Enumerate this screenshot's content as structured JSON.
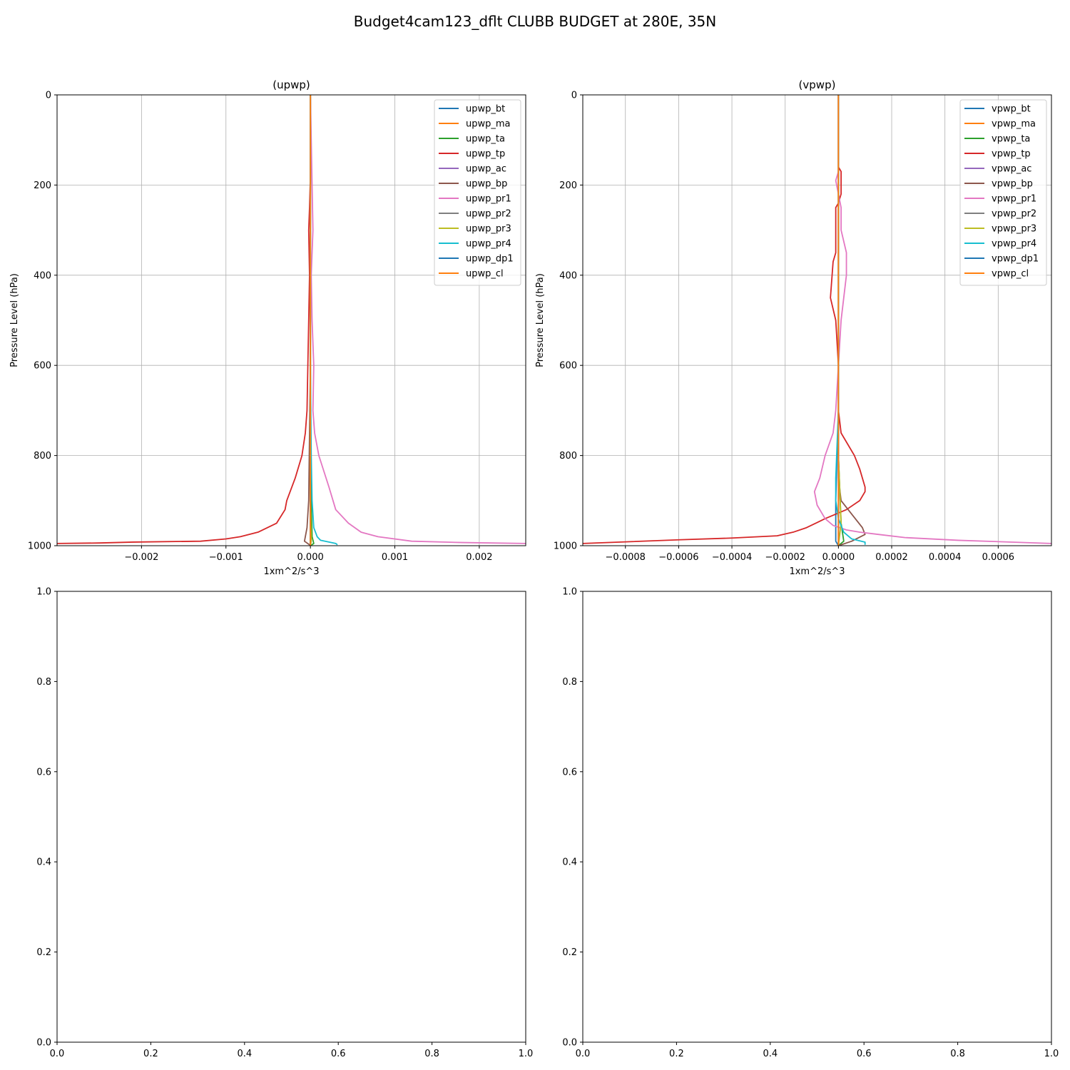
{
  "figure_title": "Budget4cam123_dflt CLUBB BUDGET at 280E, 35N",
  "chart_data": [
    {
      "type": "line",
      "title": "(upwp)",
      "xlabel": "1xm^2/s^3",
      "ylabel": "Pressure Level (hPa)",
      "xlim": [
        -0.003,
        0.00255
      ],
      "ylim": [
        1000,
        0
      ],
      "grid": true,
      "legend_position": "top-right",
      "xticks": [
        -0.002,
        -0.001,
        0.0,
        0.001,
        0.002
      ],
      "xtick_labels": [
        "−0.002",
        "−0.001",
        "0.000",
        "0.001",
        "0.002"
      ],
      "yticks": [
        0,
        200,
        400,
        600,
        800,
        1000
      ],
      "ytick_labels": [
        "0",
        "200",
        "400",
        "600",
        "800",
        "1000"
      ],
      "series": [
        {
          "name": "upwp_bt",
          "color": "#1f77b4",
          "points": [
            [
              0,
              0
            ],
            [
              0,
              600
            ],
            [
              0,
              900
            ],
            [
              0,
              990
            ],
            [
              0,
              1000
            ]
          ]
        },
        {
          "name": "upwp_ma",
          "color": "#ff7f0e",
          "points": [
            [
              0,
              0
            ],
            [
              0,
              600
            ],
            [
              0,
              990
            ],
            [
              0,
              1000
            ]
          ]
        },
        {
          "name": "upwp_ta",
          "color": "#2ca02c",
          "points": [
            [
              0,
              0
            ],
            [
              0,
              700
            ],
            [
              1e-05,
              900
            ],
            [
              2e-05,
              980
            ],
            [
              4e-05,
              995
            ],
            [
              0,
              1000
            ]
          ]
        },
        {
          "name": "upwp_tp",
          "color": "#d62728",
          "points": [
            [
              0,
              0
            ],
            [
              0,
              180
            ],
            [
              -1e-05,
              250
            ],
            [
              -2e-05,
              300
            ],
            [
              -1e-05,
              400
            ],
            [
              -2e-05,
              500
            ],
            [
              -3e-05,
              600
            ],
            [
              -4e-05,
              700
            ],
            [
              -6e-05,
              750
            ],
            [
              -0.0001,
              800
            ],
            [
              -0.00018,
              850
            ],
            [
              -0.00028,
              900
            ],
            [
              -0.0003,
              920
            ],
            [
              -0.0004,
              950
            ],
            [
              -0.00062,
              970
            ],
            [
              -0.00083,
              980
            ],
            [
              -0.001,
              985
            ],
            [
              -0.0013,
              990
            ],
            [
              -0.0021,
              992
            ],
            [
              -0.0025,
              994
            ],
            [
              -0.003,
              995
            ]
          ]
        },
        {
          "name": "upwp_ac",
          "color": "#9467bd",
          "points": [
            [
              0,
              0
            ],
            [
              0,
              1000
            ]
          ]
        },
        {
          "name": "upwp_bp",
          "color": "#8c564b",
          "points": [
            [
              0,
              0
            ],
            [
              0,
              600
            ],
            [
              -2e-05,
              900
            ],
            [
              -4e-05,
              960
            ],
            [
              -7e-05,
              990
            ],
            [
              -1e-05,
              998
            ],
            [
              0,
              1000
            ]
          ]
        },
        {
          "name": "upwp_pr1",
          "color": "#e377c2",
          "points": [
            [
              0,
              0
            ],
            [
              2e-05,
              200
            ],
            [
              3e-05,
              300
            ],
            [
              1e-05,
              400
            ],
            [
              2e-05,
              500
            ],
            [
              4e-05,
              600
            ],
            [
              3e-05,
              700
            ],
            [
              5e-05,
              750
            ],
            [
              0.0001,
              800
            ],
            [
              0.00022,
              870
            ],
            [
              0.0003,
              920
            ],
            [
              0.00045,
              950
            ],
            [
              0.0006,
              970
            ],
            [
              0.0008,
              980
            ],
            [
              0.0012,
              990
            ],
            [
              0.0018,
              993
            ],
            [
              0.00255,
              995
            ]
          ]
        },
        {
          "name": "upwp_pr2",
          "color": "#7f7f7f",
          "points": [
            [
              0,
              0
            ],
            [
              0,
              1000
            ]
          ]
        },
        {
          "name": "upwp_pr3",
          "color": "#bcbd22",
          "points": [
            [
              0,
              0
            ],
            [
              0,
              900
            ],
            [
              1e-05,
              990
            ],
            [
              0,
              1000
            ]
          ]
        },
        {
          "name": "upwp_pr4",
          "color": "#17becf",
          "points": [
            [
              0,
              0
            ],
            [
              0,
              600
            ],
            [
              1e-05,
              800
            ],
            [
              2e-05,
              900
            ],
            [
              4e-05,
              960
            ],
            [
              8e-05,
              980
            ],
            [
              0.00012,
              988
            ],
            [
              0.0003,
              995
            ],
            [
              0.00032,
              998
            ]
          ]
        },
        {
          "name": "upwp_dp1",
          "color": "#1f77b4",
          "points": [
            [
              0,
              0
            ],
            [
              0,
              1000
            ]
          ]
        },
        {
          "name": "upwp_cl",
          "color": "#ff7f0e",
          "points": [
            [
              0,
              0
            ],
            [
              0,
              1000
            ]
          ]
        }
      ]
    },
    {
      "type": "line",
      "title": "(vpwp)",
      "xlabel": "1xm^2/s^3",
      "ylabel": "Pressure Level (hPa)",
      "xlim": [
        -0.00096,
        0.0008
      ],
      "ylim": [
        1000,
        0
      ],
      "grid": true,
      "legend_position": "top-right",
      "xticks": [
        -0.0008,
        -0.0006,
        -0.0004,
        -0.0002,
        0.0,
        0.0002,
        0.0004,
        0.0006
      ],
      "xtick_labels": [
        "−0.0008",
        "−0.0006",
        "−0.0004",
        "−0.0002",
        "0.0000",
        "0.0002",
        "0.0004",
        "0.0006"
      ],
      "yticks": [
        0,
        200,
        400,
        600,
        800,
        1000
      ],
      "ytick_labels": [
        "0",
        "200",
        "400",
        "600",
        "800",
        "1000"
      ],
      "series": [
        {
          "name": "vpwp_bt",
          "color": "#1f77b4",
          "points": [
            [
              0,
              0
            ],
            [
              0,
              700
            ],
            [
              -1e-05,
              900
            ],
            [
              -1e-05,
              990
            ],
            [
              0,
              1000
            ]
          ]
        },
        {
          "name": "vpwp_ma",
          "color": "#ff7f0e",
          "points": [
            [
              0,
              0
            ],
            [
              0,
              1000
            ]
          ]
        },
        {
          "name": "vpwp_ta",
          "color": "#2ca02c",
          "points": [
            [
              0,
              0
            ],
            [
              0,
              800
            ],
            [
              1e-05,
              950
            ],
            [
              2e-05,
              990
            ],
            [
              0,
              1000
            ]
          ]
        },
        {
          "name": "vpwp_tp",
          "color": "#d62728",
          "points": [
            [
              0,
              0
            ],
            [
              0,
              160
            ],
            [
              1e-05,
              170
            ],
            [
              1e-05,
              200
            ],
            [
              1e-05,
              220
            ],
            [
              0,
              240
            ],
            [
              -1e-05,
              250
            ],
            [
              -1e-05,
              300
            ],
            [
              -1e-05,
              350
            ],
            [
              -2e-05,
              370
            ],
            [
              -3e-05,
              450
            ],
            [
              -1e-05,
              500
            ],
            [
              0,
              600
            ],
            [
              0,
              700
            ],
            [
              1e-05,
              750
            ],
            [
              6e-05,
              800
            ],
            [
              8e-05,
              830
            ],
            [
              0.0001,
              870
            ],
            [
              0.0001,
              880
            ],
            [
              8e-05,
              900
            ],
            [
              3e-05,
              920
            ],
            [
              -5e-05,
              940
            ],
            [
              -0.00012,
              960
            ],
            [
              -0.00017,
              970
            ],
            [
              -0.00023,
              978
            ],
            [
              -0.0004,
              983
            ],
            [
              -0.0006,
              987
            ],
            [
              -0.00096,
              995
            ]
          ]
        },
        {
          "name": "vpwp_ac",
          "color": "#9467bd",
          "points": [
            [
              0,
              0
            ],
            [
              0,
              1000
            ]
          ]
        },
        {
          "name": "vpwp_bp",
          "color": "#8c564b",
          "points": [
            [
              0,
              0
            ],
            [
              0,
              850
            ],
            [
              1e-05,
              900
            ],
            [
              5e-05,
              930
            ],
            [
              9e-05,
              960
            ],
            [
              0.0001,
              975
            ],
            [
              5e-05,
              990
            ],
            [
              0,
              1000
            ]
          ]
        },
        {
          "name": "vpwp_pr1",
          "color": "#e377c2",
          "points": [
            [
              0,
              0
            ],
            [
              0,
              170
            ],
            [
              -1e-05,
              190
            ],
            [
              0,
              220
            ],
            [
              1e-05,
              250
            ],
            [
              1e-05,
              300
            ],
            [
              3e-05,
              350
            ],
            [
              3e-05,
              400
            ],
            [
              2e-05,
              450
            ],
            [
              1e-05,
              500
            ],
            [
              0,
              600
            ],
            [
              -1e-05,
              700
            ],
            [
              -2e-05,
              750
            ],
            [
              -5e-05,
              800
            ],
            [
              -7e-05,
              850
            ],
            [
              -9e-05,
              880
            ],
            [
              -8e-05,
              910
            ],
            [
              -5e-05,
              940
            ],
            [
              -2e-05,
              955
            ],
            [
              3e-05,
              965
            ],
            [
              8e-05,
              970
            ],
            [
              0.00015,
              975
            ],
            [
              0.00025,
              982
            ],
            [
              0.00045,
              988
            ],
            [
              0.0008,
              995
            ]
          ]
        },
        {
          "name": "vpwp_pr2",
          "color": "#7f7f7f",
          "points": [
            [
              0,
              0
            ],
            [
              0,
              1000
            ]
          ]
        },
        {
          "name": "vpwp_pr3",
          "color": "#bcbd22",
          "points": [
            [
              0,
              0
            ],
            [
              0,
              800
            ],
            [
              1e-05,
              950
            ],
            [
              0,
              1000
            ]
          ]
        },
        {
          "name": "vpwp_pr4",
          "color": "#17becf",
          "points": [
            [
              0,
              0
            ],
            [
              0,
              700
            ],
            [
              -1e-05,
              850
            ],
            [
              -1e-05,
              900
            ],
            [
              0,
              940
            ],
            [
              2e-05,
              970
            ],
            [
              5e-05,
              985
            ],
            [
              0.0001,
              992
            ],
            [
              0.0001,
              998
            ]
          ]
        },
        {
          "name": "vpwp_dp1",
          "color": "#1f77b4",
          "points": [
            [
              0,
              0
            ],
            [
              0,
              1000
            ]
          ]
        },
        {
          "name": "vpwp_cl",
          "color": "#ff7f0e",
          "points": [
            [
              0,
              0
            ],
            [
              0,
              1000
            ]
          ]
        }
      ]
    },
    {
      "type": "line",
      "title": "",
      "xlabel": "",
      "ylabel": "",
      "xlim": [
        0,
        1
      ],
      "ylim": [
        0,
        1
      ],
      "grid": false,
      "xticks": [
        0,
        0.2,
        0.4,
        0.6,
        0.8,
        1.0
      ],
      "xtick_labels": [
        "0.0",
        "0.2",
        "0.4",
        "0.6",
        "0.8",
        "1.0"
      ],
      "yticks": [
        0,
        0.2,
        0.4,
        0.6,
        0.8,
        1.0
      ],
      "ytick_labels": [
        "0.0",
        "0.2",
        "0.4",
        "0.6",
        "0.8",
        "1.0"
      ],
      "series": []
    },
    {
      "type": "line",
      "title": "",
      "xlabel": "",
      "ylabel": "",
      "xlim": [
        0,
        1
      ],
      "ylim": [
        0,
        1
      ],
      "grid": false,
      "xticks": [
        0,
        0.2,
        0.4,
        0.6,
        0.8,
        1.0
      ],
      "xtick_labels": [
        "0.0",
        "0.2",
        "0.4",
        "0.6",
        "0.8",
        "1.0"
      ],
      "yticks": [
        0,
        0.2,
        0.4,
        0.6,
        0.8,
        1.0
      ],
      "ytick_labels": [
        "0.0",
        "0.2",
        "0.4",
        "0.6",
        "0.8",
        "1.0"
      ],
      "series": []
    }
  ]
}
